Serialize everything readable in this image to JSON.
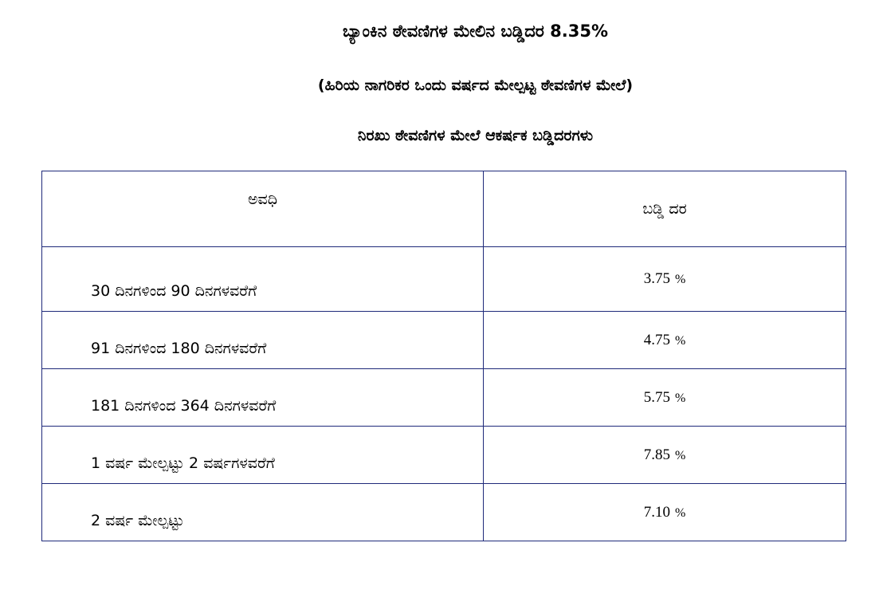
{
  "title": "ಬ್ಯಾಂಕಿನ ಠೇವಣಿಗಳ ಮೇಲಿನ ಬಡ್ಡಿದರ 8.35%",
  "subtitle": "(ಹಿರಿಯ ನಾಗರಿಕರ ಒಂದು ವರ್ಷದ ಮೇಲ್ಪಟ್ಟ ಠೇವಣಿಗಳ ಮೇಲೆ)",
  "section_heading": "ನಿರಖು ಠೇವಣಿಗಳ ಮೇಲೆ ಆಕರ್ಷಕ ಬಡ್ಡಿದರಗಳು",
  "table": {
    "headers": {
      "period": "ಅವಧಿ",
      "rate": "ಬಡ್ಡಿ ದರ"
    },
    "rows": [
      {
        "period": "30 ದಿನಗಳಿಂದ 90 ದಿನಗಳವರೆಗೆ",
        "rate": "3.75",
        "unit": "%"
      },
      {
        "period": "91 ದಿನಗಳಿಂದ 180 ದಿನಗಳವರೆಗೆ",
        "rate": "4.75",
        "unit": "%"
      },
      {
        "period": "181 ದಿನಗಳಿಂದ 364 ದಿನಗಳವರೆಗೆ",
        "rate": "5.75",
        "unit": "%"
      },
      {
        "period": "1 ವರ್ಷ ಮೇಲ್ಪಟ್ಟು 2 ವರ್ಷಗಳವರೆಗೆ",
        "rate": "7.85",
        "unit": "%"
      },
      {
        "period": "2 ವರ್ಷ ಮೇಲ್ಪಟ್ಟು",
        "rate": "7.10",
        "unit": "%"
      }
    ]
  },
  "colors": {
    "text": "#000000",
    "border": "#1f2a7a",
    "background": "#ffffff"
  }
}
